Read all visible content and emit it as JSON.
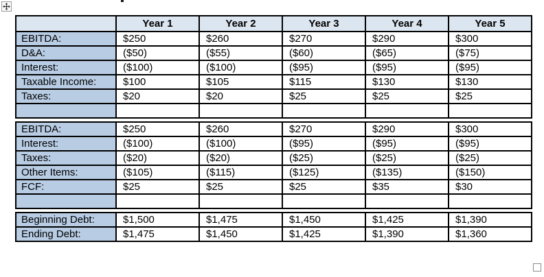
{
  "icons": {
    "move_handle": "four-way-move-arrow",
    "resize_handle": "resize-square"
  },
  "colors": {
    "header_row_bg": "#dce6f1",
    "label_column_bg": "#b8cce4",
    "table_border": "#000000",
    "handle_border": "#9b9b9b"
  },
  "table": {
    "header": [
      "",
      "Year 1",
      "Year 2",
      "Year 3",
      "Year 4",
      "Year 5"
    ],
    "sections": [
      {
        "name": "taxable-income",
        "rows": [
          {
            "label": "EBITDA:",
            "values": [
              "$250",
              "$260",
              "$270",
              "$290",
              "$300"
            ]
          },
          {
            "label": "D&A:",
            "values": [
              "($50)",
              "($55)",
              "($60)",
              "($65)",
              "($75)"
            ]
          },
          {
            "label": "Interest:",
            "values": [
              "($100)",
              "($100)",
              "($95)",
              "($95)",
              "($95)"
            ]
          },
          {
            "label": "Taxable Income:",
            "values": [
              "$100",
              "$105",
              "$115",
              "$130",
              "$130"
            ]
          },
          {
            "label": "Taxes:",
            "values": [
              "$20",
              "$20",
              "$25",
              "$25",
              "$25"
            ]
          },
          {
            "label": "",
            "values": [
              "",
              "",
              "",
              "",
              ""
            ]
          }
        ]
      },
      {
        "name": "free-cash-flow",
        "rows": [
          {
            "label": "EBITDA:",
            "values": [
              "$250",
              "$260",
              "$270",
              "$290",
              "$300"
            ]
          },
          {
            "label": "Interest:",
            "values": [
              "($100)",
              "($100)",
              "($95)",
              "($95)",
              "($95)"
            ]
          },
          {
            "label": "Taxes:",
            "values": [
              "($20)",
              "($20)",
              "($25)",
              "($25)",
              "($25)"
            ]
          },
          {
            "label": "Other Items:",
            "values": [
              "($105)",
              "($115)",
              "($125)",
              "($135)",
              "($150)"
            ]
          },
          {
            "label": "FCF:",
            "values": [
              "$25",
              "$25",
              "$25",
              "$35",
              "$30"
            ]
          },
          {
            "label": "",
            "values": [
              "",
              "",
              "",
              "",
              ""
            ]
          }
        ]
      },
      {
        "name": "debt-schedule",
        "rows": [
          {
            "label": "Beginning Debt:",
            "values": [
              "$1,500",
              "$1,475",
              "$1,450",
              "$1,425",
              "$1,390"
            ]
          },
          {
            "label": "Ending Debt:",
            "values": [
              "$1,475",
              "$1,450",
              "$1,425",
              "$1,390",
              "$1,360"
            ]
          }
        ]
      }
    ]
  }
}
